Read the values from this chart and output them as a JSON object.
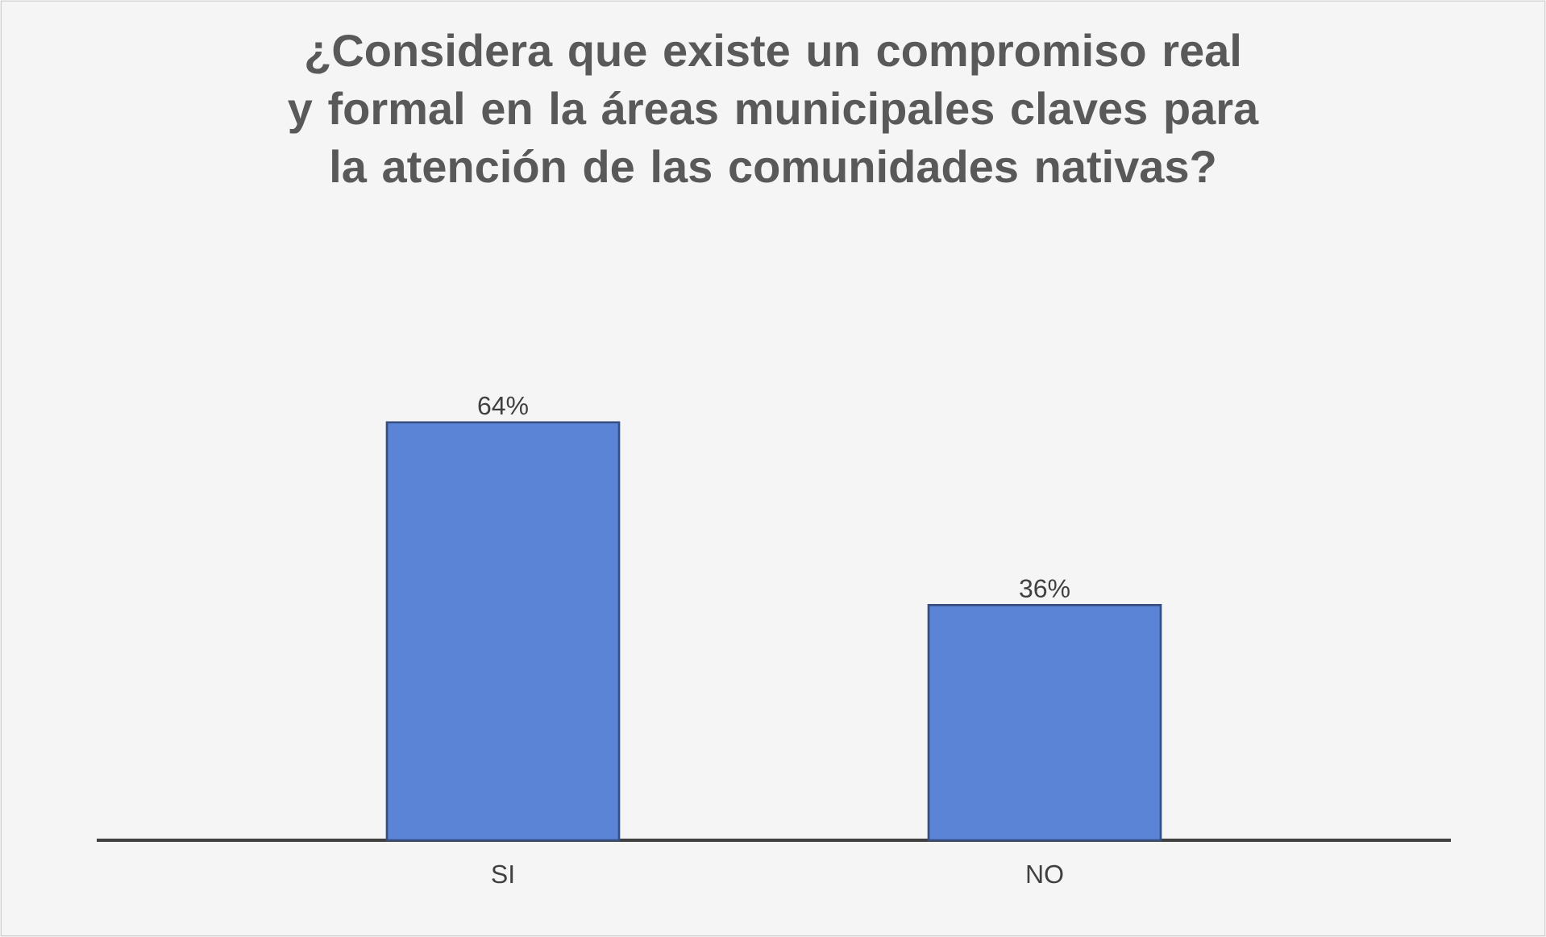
{
  "chart_data": {
    "type": "bar",
    "title": "¿Considera que existe un compromiso real y formal en la áreas municipales claves para la atención de las comunidades nativas?",
    "categories": [
      "SI",
      "NO"
    ],
    "values": [
      64,
      36
    ],
    "value_labels": [
      "64%",
      "36%"
    ],
    "color": "#5b84d6"
  }
}
